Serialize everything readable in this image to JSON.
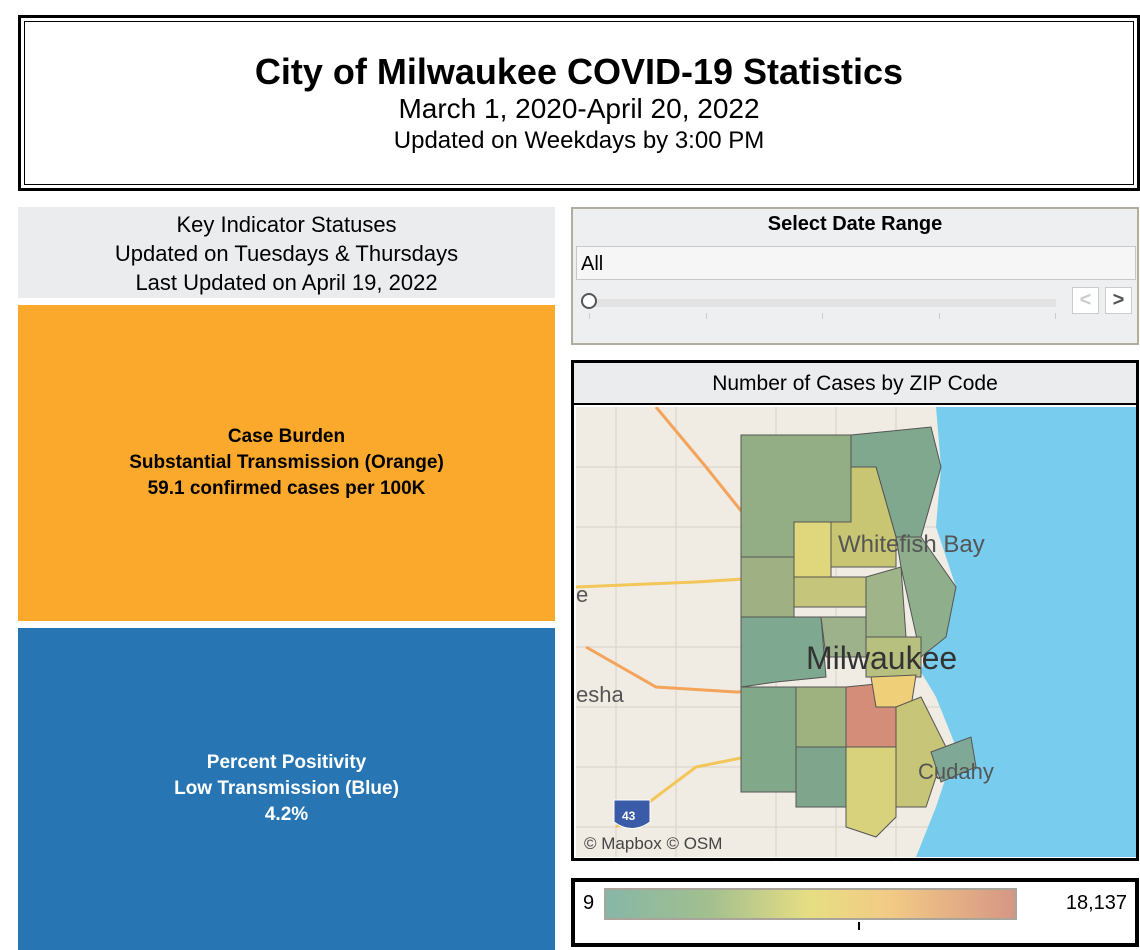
{
  "header": {
    "title": "City of Milwaukee COVID-19 Statistics",
    "subtitle": "March 1, 2020-April 20, 2022",
    "updated": "Updated on Weekdays by 3:00 PM"
  },
  "key_indicators": {
    "line1": "Key Indicator Statuses",
    "line2": "Updated on Tuesdays & Thursdays",
    "line3": "Last Updated on April 19, 2022"
  },
  "case_burden": {
    "title": "Case Burden",
    "status": "Substantial Transmission (Orange)",
    "value": "59.1 confirmed cases per 100K",
    "color": "#fba92d"
  },
  "percent_positivity": {
    "title": "Percent Positivity",
    "status": "Low Transmission (Blue)",
    "value": "4.2%",
    "color": "#2775b2"
  },
  "date_range": {
    "title": "Select Date Range",
    "selected": "All",
    "prev_icon": "chevron-left-icon",
    "next_icon": "chevron-right-icon",
    "prev": "<",
    "next": ">"
  },
  "map": {
    "title": "Number of Cases by ZIP Code",
    "labels": {
      "whitefish_bay": "Whitefish Bay",
      "milwaukee": "Milwaukee",
      "cudahy": "Cudahy",
      "e": "e",
      "esha": "esha",
      "highway": "43"
    },
    "attribution": "© Mapbox  © OSM"
  },
  "legend": {
    "min": "9",
    "max": "18,137",
    "colors": [
      "#86b7a7",
      "#e7de83",
      "#d69685"
    ]
  }
}
